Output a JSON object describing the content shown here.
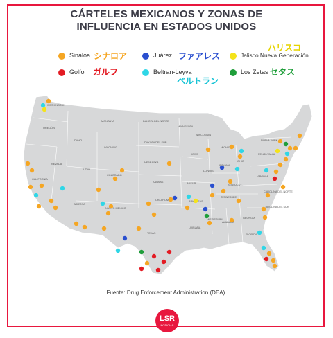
{
  "title": {
    "line1": "CÁRTELES MEXICANOS Y ZONAS DE",
    "line2": "INFLUENCIA EN ESTADOS UNIDOS"
  },
  "legend": [
    {
      "name": "Sinaloa",
      "jp": "シナロア",
      "color": "#f5a623",
      "jp_color": "#f5a623"
    },
    {
      "name": "Juárez",
      "jp": "ファアレス",
      "color": "#2a4fcf",
      "jp_color": "#2a4fcf"
    },
    {
      "name": "Jalisco Nueva Generación",
      "jp": "ハリスコ",
      "color": "#f4e31a",
      "jp_color": "#e6d400"
    },
    {
      "name": "Golfo",
      "jp": "ガルフ",
      "color": "#e31b23",
      "jp_color": "#e31b23"
    },
    {
      "name": "Beltran-Leyva",
      "jp": "ベルトラン",
      "color": "#2fd6e6",
      "jp_color": "#19c4d6"
    },
    {
      "name": "Los Zetas",
      "jp": "セタス",
      "color": "#1f9e3a",
      "jp_color": "#1f9e3a"
    }
  ],
  "states": [
    "WASHINGTON",
    "OREGÓN",
    "CALIFORNIA",
    "NEVADA",
    "IDAHO",
    "MONTANA",
    "WYOMING",
    "UTAH",
    "ARIZONA",
    "COLORADO",
    "NUEVO MÉXICO",
    "DAKOTA DEL NORTE",
    "DAKOTA DEL SUR",
    "NEBRASKA",
    "KANSAS",
    "OKLAHOMA",
    "TEXAS",
    "MINNESOTA",
    "IOWA",
    "MISURI",
    "ARKANSAS",
    "LUISIANA",
    "WISCONSIN",
    "ILLINOIS",
    "MICHIGAN",
    "INDIANA",
    "OHIO",
    "KENTUCKY",
    "TENNESSEE",
    "MISSISSIPPI",
    "ALABAMA",
    "GEORGIA",
    "FLORIDA",
    "CAROLINA DEL NORTE",
    "CAROLINA DEL SUR",
    "VIRGINIA",
    "PENSILVANIA",
    "NUEVA YORK"
  ],
  "source": "Fuente: Drug Enforcement Administration (DEA).",
  "logo": {
    "main": "LSR",
    "sub": "NOTICIAS"
  }
}
